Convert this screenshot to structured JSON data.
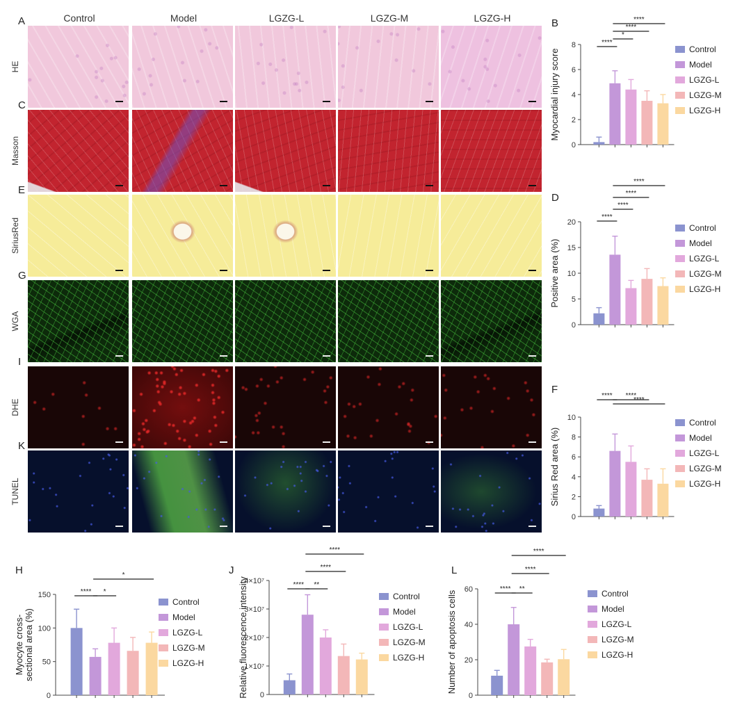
{
  "columns": [
    "Control",
    "Model",
    "LGZG-L",
    "LGZG-M",
    "LGZG-H"
  ],
  "image_rows": [
    {
      "letter": "A",
      "label": "HE",
      "type": "he"
    },
    {
      "letter": "C",
      "label": "Masson",
      "type": "masson"
    },
    {
      "letter": "E",
      "label": "SiriusRed",
      "type": "sirius"
    },
    {
      "letter": "G",
      "label": "WGA",
      "type": "wga"
    },
    {
      "letter": "I",
      "label": "DHE",
      "type": "dhe"
    },
    {
      "letter": "K",
      "label": "TUNEL",
      "type": "tunel"
    }
  ],
  "colors": {
    "Control": "#8b93cf",
    "Model": "#c397d9",
    "LGZG-L": "#e2a8dc",
    "LGZG-M": "#f3b7b8",
    "LGZG-H": "#fbd8a0",
    "he_bg": "#f1c8dc",
    "masson_bg": "#c2242f",
    "sirius_bg": "#f6ec99",
    "wga_bg": "#0d2a0b",
    "dhe_bg": "#190606",
    "tunel_bg": "#06102c"
  },
  "chart_data": [
    {
      "letter": "B",
      "type": "bar",
      "categories": [
        "Control",
        "Model",
        "LGZG-L",
        "LGZG-M",
        "LGZG-H"
      ],
      "values": [
        0.2,
        4.9,
        4.4,
        3.5,
        3.3
      ],
      "errors": [
        0.4,
        1.0,
        0.8,
        0.8,
        0.7
      ],
      "ylabel": "Myocardial injury score",
      "ylim": [
        0,
        8
      ],
      "yticks": [
        "0",
        "2",
        "4",
        "6",
        "8"
      ],
      "significance": [
        {
          "from": 0,
          "to": 1,
          "label": "****"
        },
        {
          "from": 1,
          "to": 2,
          "label": "*"
        },
        {
          "from": 1,
          "to": 3,
          "label": "****"
        },
        {
          "from": 1,
          "to": 4,
          "label": "****"
        }
      ],
      "legend": "right"
    },
    {
      "letter": "D",
      "type": "bar",
      "categories": [
        "Control",
        "Model",
        "LGZG-L",
        "LGZG-M",
        "LGZG-H"
      ],
      "values": [
        2.2,
        13.6,
        7.1,
        8.9,
        7.5
      ],
      "errors": [
        1.1,
        3.6,
        1.5,
        2.0,
        1.6
      ],
      "ylabel": "Positive area (%)",
      "ylim": [
        0,
        20
      ],
      "yticks": [
        "0",
        "5",
        "10",
        "15",
        "20"
      ],
      "significance": [
        {
          "from": 0,
          "to": 1,
          "label": "****"
        },
        {
          "from": 1,
          "to": 2,
          "label": "****"
        },
        {
          "from": 1,
          "to": 3,
          "label": "****"
        },
        {
          "from": 1,
          "to": 4,
          "label": "****"
        }
      ],
      "legend": "right"
    },
    {
      "letter": "F",
      "type": "bar",
      "categories": [
        "Control",
        "Model",
        "LGZG-L",
        "LGZG-M",
        "LGZG-H"
      ],
      "values": [
        0.8,
        6.6,
        5.5,
        3.7,
        3.3
      ],
      "errors": [
        0.3,
        1.7,
        1.6,
        1.1,
        1.5
      ],
      "ylabel": "Sirius Red area (%)",
      "ylim": [
        0,
        10
      ],
      "yticks": [
        "0",
        "2",
        "4",
        "6",
        "8",
        "10"
      ],
      "significance": [
        {
          "from": 0,
          "to": 1,
          "label": "****"
        },
        {
          "from": 1,
          "to": 3,
          "label": "****"
        },
        {
          "from": 1,
          "to": 4,
          "label": "****"
        }
      ],
      "legend": "right"
    },
    {
      "letter": "H",
      "type": "bar",
      "categories": [
        "Control",
        "Model",
        "LGZG-L",
        "LGZG-M",
        "LGZG-H"
      ],
      "values": [
        100,
        57,
        78,
        66,
        78
      ],
      "errors": [
        28,
        12,
        22,
        20,
        16
      ],
      "ylabel": "Myocyte cross-sectional area (%)",
      "ylabel_lines": [
        "Myocyte cross-",
        "sectional area (%)"
      ],
      "ylim": [
        0,
        150
      ],
      "yticks": [
        "0",
        "50",
        "100",
        "150"
      ],
      "significance": [
        {
          "from": 0,
          "to": 1,
          "label": "****"
        },
        {
          "from": 1,
          "to": 2,
          "label": "*"
        },
        {
          "from": 1,
          "to": 4,
          "label": "*"
        }
      ],
      "legend": "right"
    },
    {
      "letter": "J",
      "type": "bar",
      "categories": [
        "Control",
        "Model",
        "LGZG-L",
        "LGZG-M",
        "LGZG-H"
      ],
      "values": [
        5000000,
        28000000,
        20000000,
        13500000,
        12300000
      ],
      "errors": [
        2200000,
        7000000,
        2700000,
        4200000,
        2200000
      ],
      "ylabel": "Relative fluorescence intensity",
      "ylim": [
        0,
        40000000
      ],
      "yticks": [
        "0",
        "1×10⁷",
        "2×10⁷",
        "3×10⁷",
        "4×10⁷"
      ],
      "significance": [
        {
          "from": 0,
          "to": 1,
          "label": "****"
        },
        {
          "from": 1,
          "to": 2,
          "label": "**"
        },
        {
          "from": 1,
          "to": 3,
          "label": "****"
        },
        {
          "from": 1,
          "to": 4,
          "label": "****"
        }
      ],
      "legend": "right"
    },
    {
      "letter": "L",
      "type": "bar",
      "categories": [
        "Control",
        "Model",
        "LGZG-L",
        "LGZG-M",
        "LGZG-H"
      ],
      "values": [
        11,
        40,
        27.5,
        18.5,
        20.3
      ],
      "errors": [
        3,
        9.5,
        4,
        1.8,
        5.5
      ],
      "ylabel": "Number of apoptosis cells",
      "ylim": [
        0,
        60
      ],
      "yticks": [
        "0",
        "20",
        "40",
        "60"
      ],
      "significance": [
        {
          "from": 0,
          "to": 1,
          "label": "****"
        },
        {
          "from": 1,
          "to": 2,
          "label": "**"
        },
        {
          "from": 1,
          "to": 3,
          "label": "****"
        },
        {
          "from": 1,
          "to": 4,
          "label": "****"
        }
      ],
      "legend": "right"
    }
  ]
}
